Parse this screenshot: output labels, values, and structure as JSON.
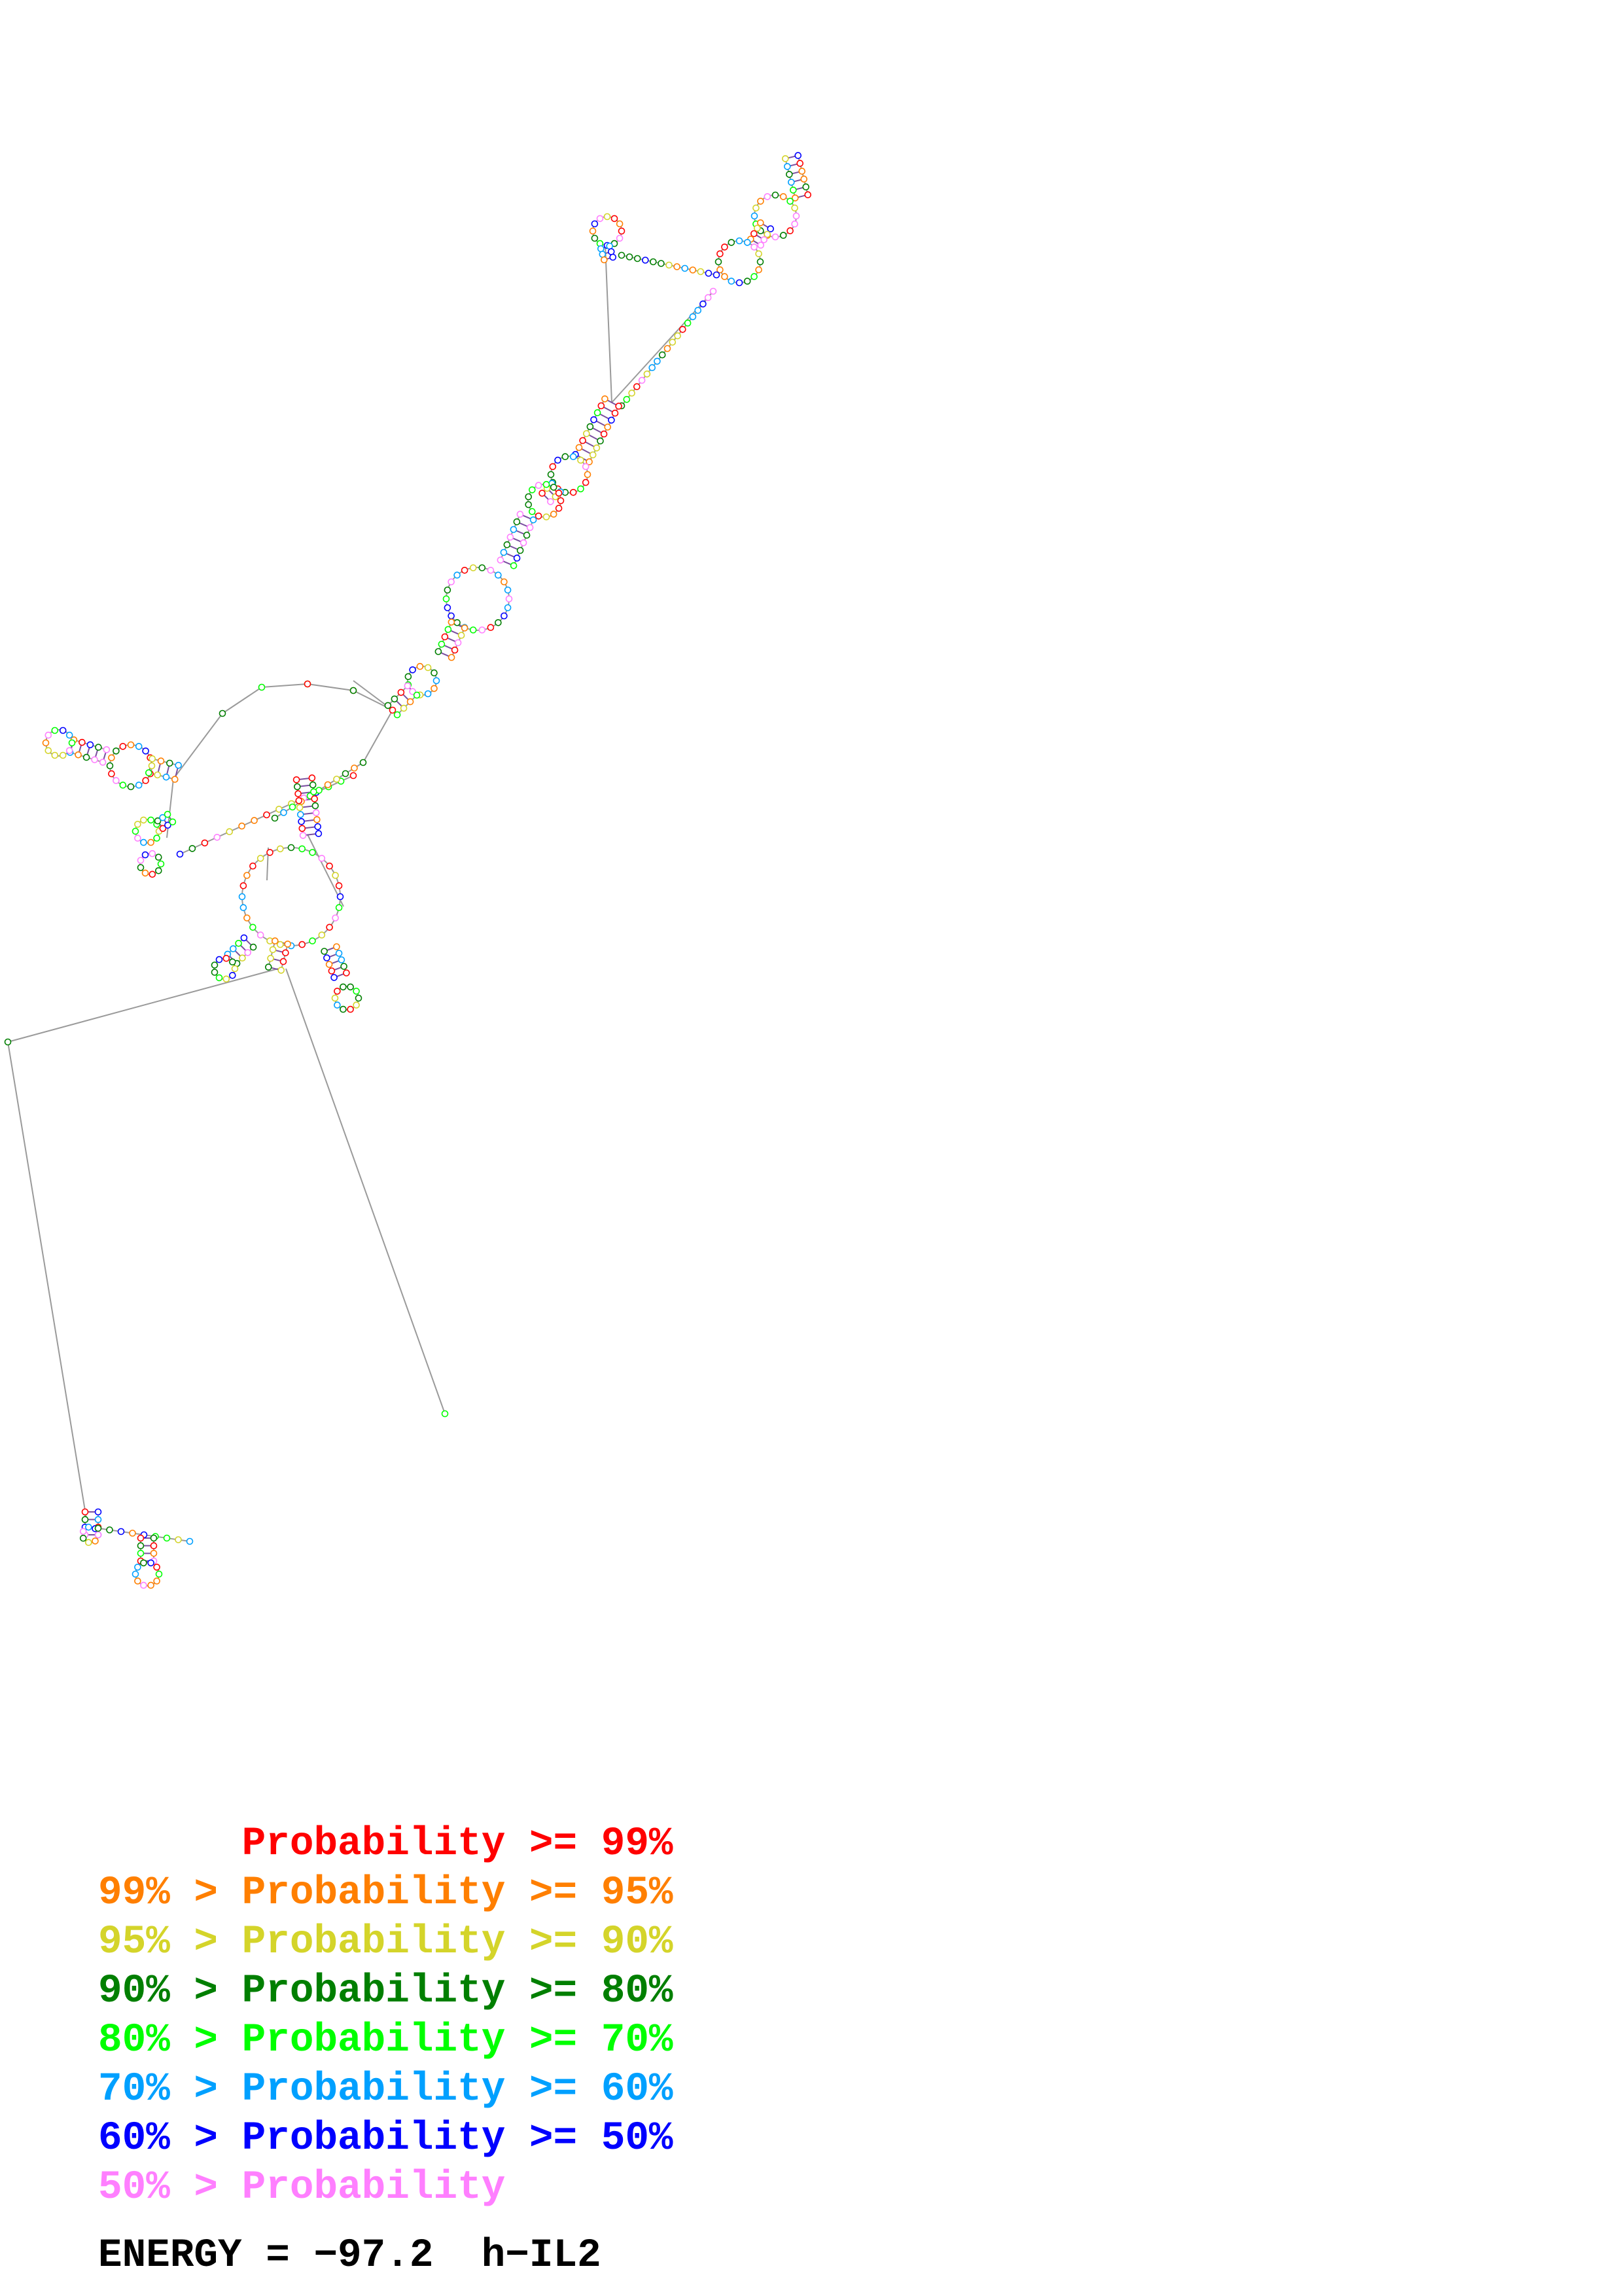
{
  "structure": {
    "name": "h-IL2",
    "energy_label": "ENERGY = −97.2  h−IL2",
    "energy_value": -97.2
  },
  "legend": {
    "items": [
      {
        "text": "      Probability >= 99%",
        "color": "#ff0000"
      },
      {
        "text": "99% > Probability >= 95%",
        "color": "#ff7f00"
      },
      {
        "text": "95% > Probability >= 90%",
        "color": "#d4d42a"
      },
      {
        "text": "90% > Probability >= 80%",
        "color": "#007f00"
      },
      {
        "text": "80% > Probability >= 70%",
        "color": "#00ff00"
      },
      {
        "text": "70% > Probability >= 60%",
        "color": "#00a0ff"
      },
      {
        "text": "60% > Probability >= 50%",
        "color": "#0000ff"
      },
      {
        "text": "50% > Probability",
        "color": "#ff7fff"
      }
    ]
  },
  "palette": {
    "backbone": "#9a9a9a",
    "base_pair": "#7a4f9f",
    "nucleotide_fill": "#ffffff"
  }
}
